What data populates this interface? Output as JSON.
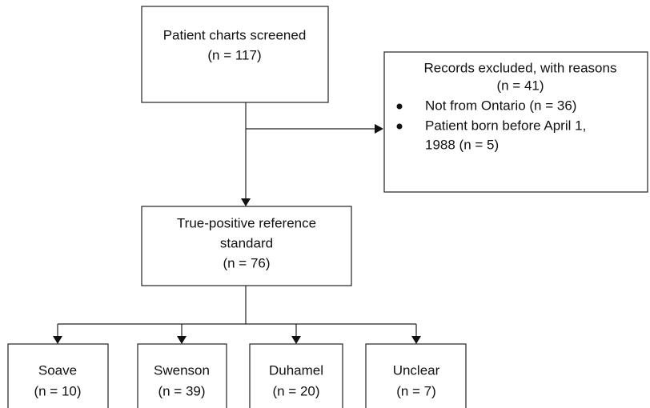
{
  "nodes": [
    {
      "label": "Patient charts screened",
      "count": "(n = 117)"
    },
    {
      "label": "Records excluded, with reasons",
      "count": "(n = 41)",
      "items": [
        [
          "Not from Ontario (n = 36)"
        ],
        [
          "Patient born before April 1,",
          "1988 (n = 5)"
        ]
      ]
    },
    {
      "label": [
        "True-positive reference",
        "standard"
      ],
      "count": "(n = 76)"
    },
    {
      "label": "Soave",
      "count": "(n = 10)"
    },
    {
      "label": "Swenson",
      "count": "(n = 39)"
    },
    {
      "label": "Duhamel",
      "count": "(n = 20)"
    },
    {
      "label": "Unclear",
      "count": "(n = 7)"
    }
  ]
}
